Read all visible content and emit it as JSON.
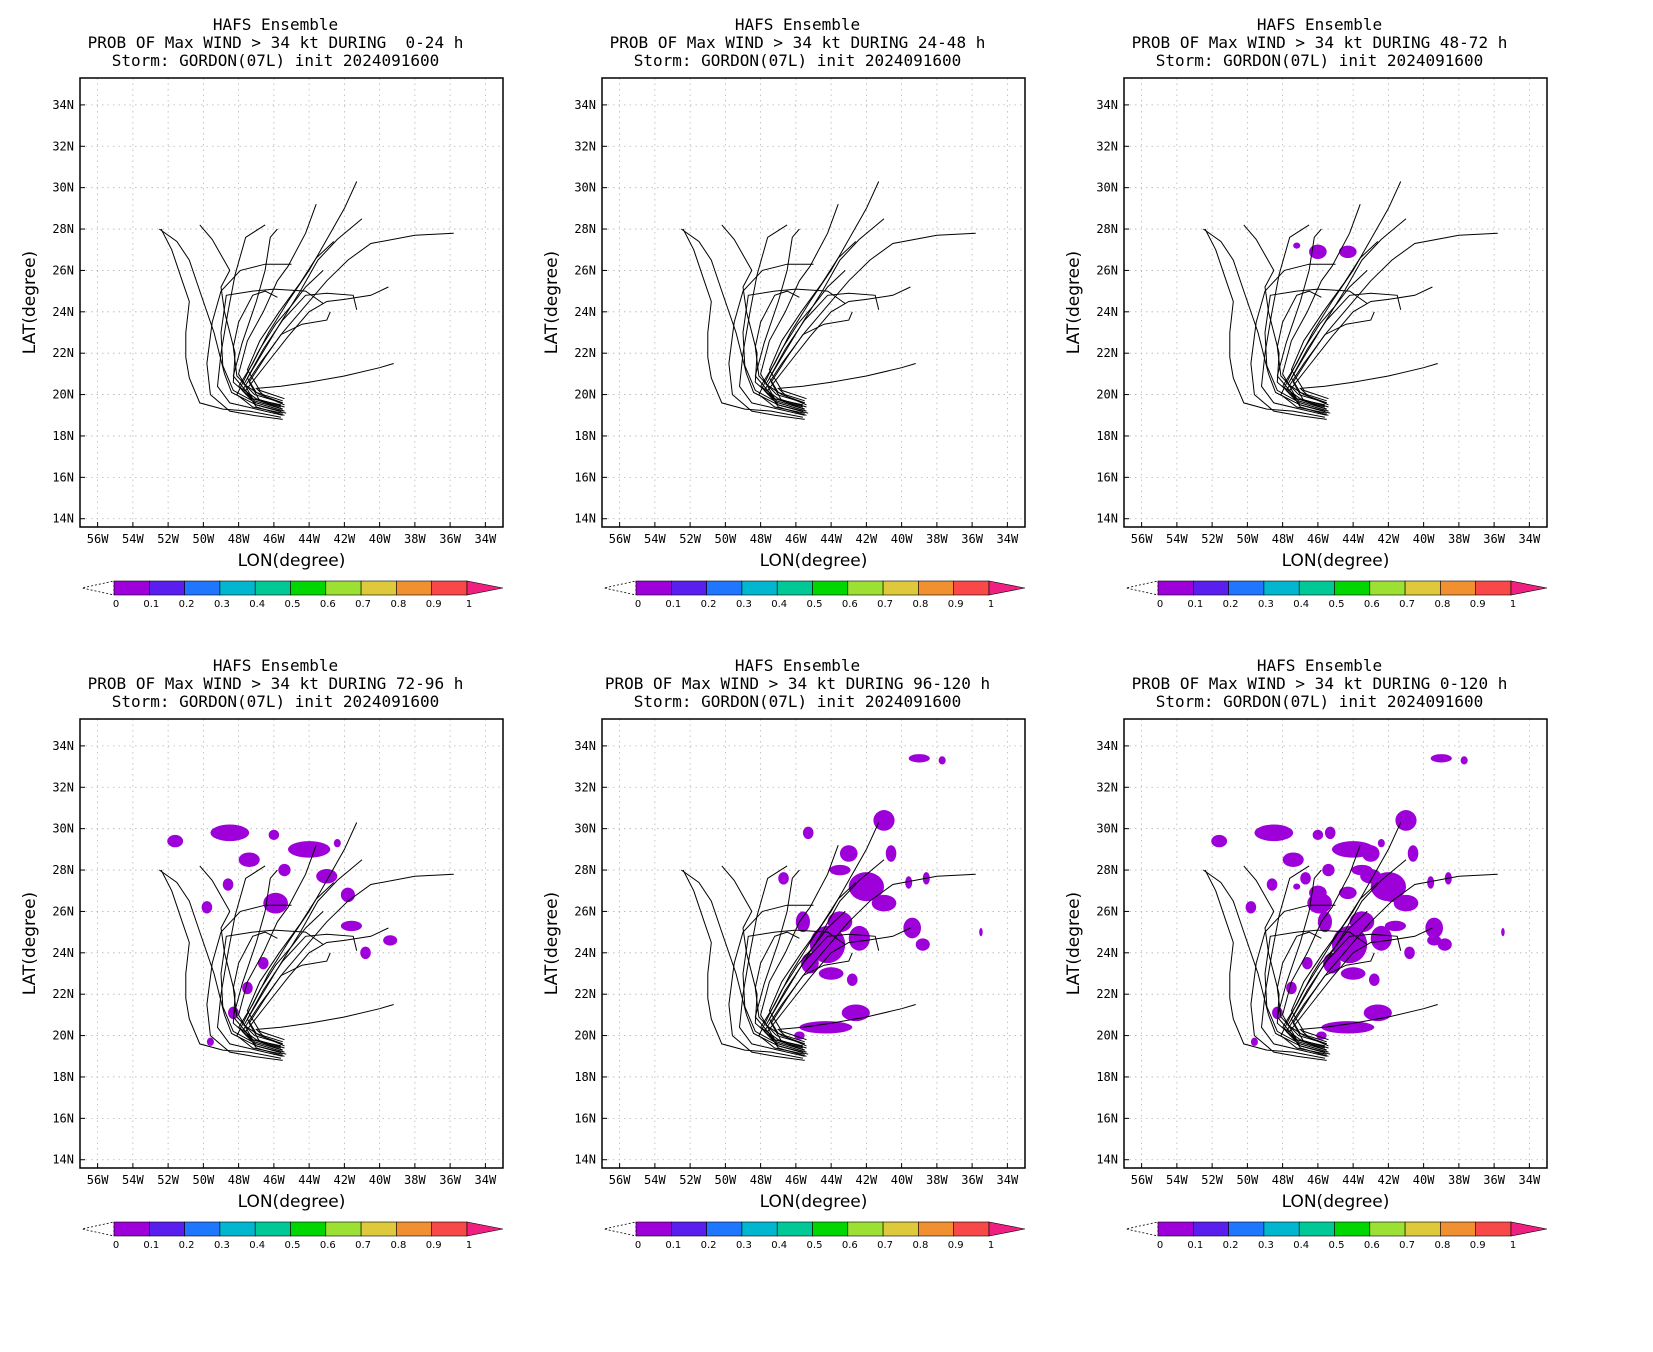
{
  "figure": {
    "title_line1": "HAFS Ensemble",
    "title_line3": "Storm: GORDON(07L) init 2024091600",
    "xlabel": "LON(degree)",
    "ylabel": "LAT(degree)",
    "lat_ticks": [
      "34N",
      "32N",
      "30N",
      "28N",
      "26N",
      "24N",
      "22N",
      "20N",
      "18N",
      "16N",
      "14N"
    ],
    "lon_ticks": [
      "56W",
      "54W",
      "52W",
      "50W",
      "48W",
      "46W",
      "44W",
      "42W",
      "40W",
      "38W",
      "36W",
      "34W"
    ],
    "colorbar_labels": [
      "0",
      "0.1",
      "0.2",
      "0.3",
      "0.4",
      "0.5",
      "0.6",
      "0.7",
      "0.8",
      "0.9",
      "1"
    ],
    "colorbar_colors": [
      "#9d00d8",
      "#5a1fee",
      "#1f77ff",
      "#00b7cf",
      "#00c896",
      "#00d700",
      "#9be033",
      "#ddc93b",
      "#f09030",
      "#f84848",
      "#f02080"
    ]
  },
  "panels": [
    {
      "title_line2": "PROB OF Max WIND > 34 kt DURING  0-24 h",
      "prob_regions": "none"
    },
    {
      "title_line2": "PROB OF Max WIND > 34 kt DURING 24-48 h",
      "prob_regions": "none"
    },
    {
      "title_line2": "PROB OF Max WIND > 34 kt DURING 48-72 h",
      "prob_regions": "small"
    },
    {
      "title_line2": "PROB OF Max WIND > 34 kt DURING 72-96 h",
      "prob_regions": "north"
    },
    {
      "title_line2": "PROB OF Max WIND > 34 kt DURING 96-120 h",
      "prob_regions": "east"
    },
    {
      "title_line2": "PROB OF Max WIND > 34 kt DURING 0-120 h",
      "prob_regions": "all"
    }
  ]
}
